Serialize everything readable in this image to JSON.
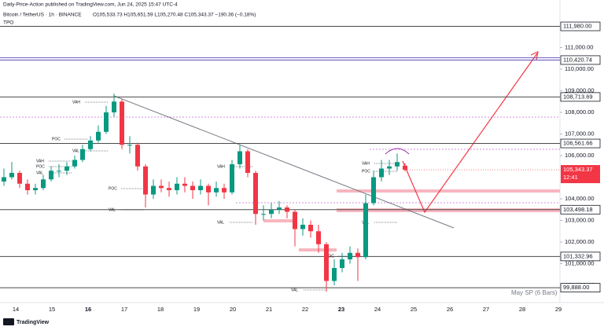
{
  "header": {
    "publisher": "Daily-Price-Action published on TradingView.com, Jun 24, 2025 15:47 UTC-4",
    "symbol": "Bitcoin / TetherUS · 1h · BINANCE",
    "ohlc": "O105,533.73 H105,651.59 L105,270.48 C105,343.37 −190.36 (−0.18%)",
    "indicator": "TPO"
  },
  "chart": {
    "ylim": [
      99200,
      112291
    ],
    "price_ticks": [
      {
        "value": 111000,
        "label": "111,000.00"
      },
      {
        "value": 110000,
        "label": "110,000.00"
      },
      {
        "value": 109000,
        "label": "109,000.00"
      },
      {
        "value": 108000,
        "label": "108,000.00"
      },
      {
        "value": 107000,
        "label": "107,000.00"
      },
      {
        "value": 106000,
        "label": "106,000.00"
      },
      {
        "value": 104000,
        "label": "104,000.00"
      },
      {
        "value": 103000,
        "label": "103,000.00"
      },
      {
        "value": 102000,
        "label": "102,000.00"
      },
      {
        "value": 101000,
        "label": "101,000.00"
      },
      {
        "value": 100000,
        "label": "100,000.00"
      }
    ],
    "levels": [
      {
        "value": 111980,
        "label": "111,980.00"
      },
      {
        "value": 110420.74,
        "label": "110,420.74"
      },
      {
        "value": 108713.69,
        "label": "108,713.69"
      },
      {
        "value": 106561.66,
        "label": "106,561.66"
      },
      {
        "value": 103498.18,
        "label": "103,498.18"
      },
      {
        "value": 101332.96,
        "label": "101,332.96"
      },
      {
        "value": 99888,
        "label": "99,888.00"
      }
    ],
    "current_price": {
      "value": 105343.37,
      "label": "105,343.37"
    },
    "countdown": "12:41",
    "days": [
      "14",
      "15",
      "16",
      "17",
      "18",
      "19",
      "20",
      "21",
      "22",
      "23",
      "24",
      "25",
      "26",
      "27",
      "28",
      "29"
    ],
    "tpo_labels": [
      "VAH",
      "POC",
      "VAL",
      "VAH",
      "POC",
      "VAL",
      "POC",
      "VAL",
      "VAH",
      "VAL",
      "VAH",
      "POC",
      "VAL",
      "POC",
      "VAL"
    ],
    "session_label": "May SP (6 Bars)",
    "ohlc": [
      [
        104800,
        105400,
        104600,
        105000
      ],
      [
        105000,
        105700,
        104900,
        105200
      ],
      [
        105200,
        105300,
        104500,
        104700
      ],
      [
        104700,
        104900,
        104200,
        104400
      ],
      [
        104400,
        104700,
        104200,
        104500
      ],
      [
        104500,
        105100,
        104400,
        104900
      ],
      [
        104900,
        105500,
        104800,
        105300
      ],
      [
        105300,
        105600,
        105000,
        105300
      ],
      [
        105300,
        105700,
        105100,
        105500
      ],
      [
        105500,
        106000,
        105400,
        105800
      ],
      [
        105800,
        106500,
        105700,
        106300
      ],
      [
        106300,
        106900,
        106200,
        106700
      ],
      [
        106700,
        107400,
        106600,
        107100
      ],
      [
        107100,
        108300,
        107000,
        108000
      ],
      [
        108000,
        108870,
        107800,
        108500
      ],
      [
        108500,
        108600,
        106300,
        106500
      ],
      [
        106500,
        106900,
        106100,
        106500
      ],
      [
        106500,
        106600,
        105300,
        105500
      ],
      [
        105500,
        105600,
        103600,
        104200
      ],
      [
        104200,
        104900,
        104000,
        104600
      ],
      [
        104600,
        104900,
        104300,
        104500
      ],
      [
        104500,
        104800,
        104100,
        104400
      ],
      [
        104400,
        105000,
        104200,
        104700
      ],
      [
        104700,
        105000,
        104300,
        104600
      ],
      [
        104600,
        104800,
        104000,
        104400
      ],
      [
        104400,
        104900,
        104200,
        104600
      ],
      [
        104600,
        104700,
        103700,
        104300
      ],
      [
        104300,
        104800,
        104100,
        104500
      ],
      [
        104500,
        104700,
        104000,
        104300
      ],
      [
        104300,
        105800,
        104200,
        105600
      ],
      [
        105600,
        106500,
        105400,
        106200
      ],
      [
        106200,
        106300,
        105000,
        105200
      ],
      [
        105200,
        105300,
        102800,
        103300
      ],
      [
        103300,
        103700,
        103000,
        103300
      ],
      [
        103300,
        103800,
        103100,
        103500
      ],
      [
        103500,
        103900,
        103300,
        103600
      ],
      [
        103600,
        103700,
        103100,
        103400
      ],
      [
        103400,
        103500,
        101800,
        102600
      ],
      [
        102600,
        103100,
        102300,
        102800
      ],
      [
        102800,
        103000,
        102200,
        102500
      ],
      [
        102500,
        102800,
        101500,
        101900
      ],
      [
        101900,
        102000,
        99700,
        100200
      ],
      [
        100200,
        101200,
        100000,
        100800
      ],
      [
        100800,
        101500,
        100600,
        101200
      ],
      [
        101200,
        101800,
        101000,
        101500
      ],
      [
        101500,
        101700,
        100200,
        101300
      ],
      [
        101300,
        104200,
        101200,
        103800
      ],
      [
        103800,
        105300,
        103700,
        105000
      ],
      [
        105000,
        105800,
        104800,
        105400
      ],
      [
        105400,
        105800,
        105100,
        105500
      ],
      [
        105500,
        106100,
        105300,
        105700
      ],
      [
        105533.73,
        105651.59,
        105270.48,
        105343.37
      ]
    ]
  },
  "footer": {
    "brand": "TradingView"
  }
}
